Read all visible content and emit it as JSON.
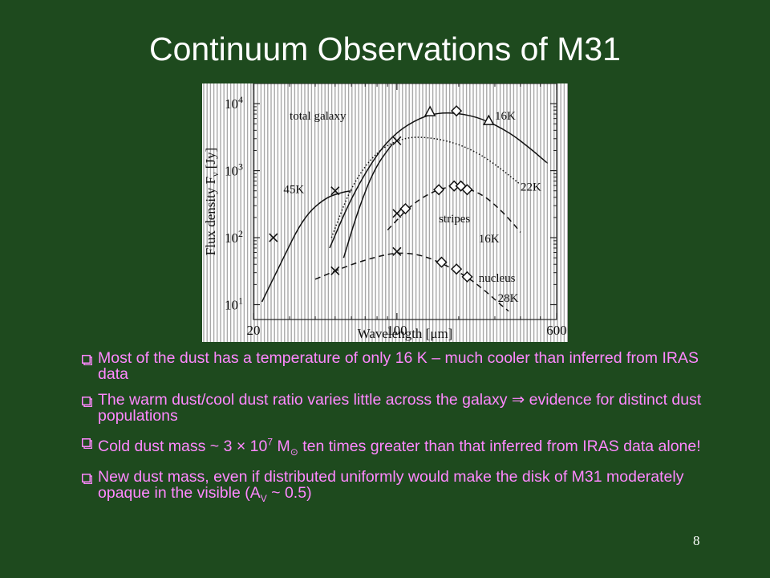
{
  "slide": {
    "title": "Continuum Observations of M31",
    "page_number": "8",
    "colors": {
      "background": "#1e4a1e",
      "text_pink": "#ff88ff",
      "title": "#ffffff"
    }
  },
  "bullets": [
    {
      "text": "Most of the dust has a temperature of only 16 K – much cooler than inferred from IRAS data"
    },
    {
      "pre": "The warm dust/cool dust ratio varies little across the galaxy ",
      "symbol": "⇒",
      "post": " evidence for distinct dust populations"
    },
    {
      "pre": "Cold dust mass ~ 3 ",
      "times": "×",
      "mid": " 10",
      "sup": "7",
      "unit": " M",
      "sun": "⊙",
      "post": " ten times greater than that inferred from IRAS data alone!"
    },
    {
      "pre": "New dust mass, even if distributed uniformly would make the disk of M31 moderately opaque in the visible (A",
      "sub": "V",
      "post": " ~ 0.5)"
    }
  ],
  "chart_data": {
    "type": "line",
    "xlabel": "Wavelength [μm]",
    "ylabel": "Flux density F",
    "ylabel_sub": "ν",
    "ylabel_unit": " [Jy]",
    "x_scale": "log",
    "y_scale": "log",
    "xlim": [
      20,
      600
    ],
    "ylim": [
      6,
      20000
    ],
    "x_ticks": [
      {
        "value": 20,
        "label": "20"
      },
      {
        "value": 100,
        "label": "100"
      },
      {
        "value": 600,
        "label": "600"
      }
    ],
    "y_ticks": [
      {
        "value": 10,
        "base": "10",
        "exp": "1"
      },
      {
        "value": 100,
        "base": "10",
        "exp": "2"
      },
      {
        "value": 1000,
        "base": "10",
        "exp": "3"
      },
      {
        "value": 10000,
        "base": "10",
        "exp": "4"
      }
    ],
    "annotations": [
      {
        "text": "total galaxy",
        "x": 30,
        "y": 5800
      },
      {
        "text": "16K",
        "x": 300,
        "y": 5800
      },
      {
        "text": "22K",
        "x": 400,
        "y": 500
      },
      {
        "text": "45K",
        "x": 28,
        "y": 460
      },
      {
        "text": "stripes",
        "x": 160,
        "y": 170
      },
      {
        "text": "16K",
        "x": 250,
        "y": 85
      },
      {
        "text": "nucleus",
        "x": 250,
        "y": 22
      },
      {
        "text": "28K",
        "x": 310,
        "y": 11
      }
    ],
    "series": [
      {
        "style": "solid",
        "points": [
          [
            22,
            11
          ],
          [
            27,
            40
          ],
          [
            35,
            200
          ],
          [
            45,
            400
          ],
          [
            55,
            480
          ],
          [
            60,
            500
          ]
        ]
      },
      {
        "style": "solid",
        "points": [
          [
            47,
            70
          ],
          [
            60,
            400
          ],
          [
            80,
            1800
          ],
          [
            100,
            3800
          ],
          [
            130,
            6200
          ],
          [
            160,
            7300
          ],
          [
            200,
            7200
          ],
          [
            260,
            6000
          ],
          [
            350,
            3800
          ],
          [
            450,
            2100
          ],
          [
            540,
            1300
          ]
        ]
      },
      {
        "style": "solid",
        "points": [
          [
            55,
            50
          ],
          [
            65,
            270
          ],
          [
            78,
            1100
          ],
          [
            95,
            2500
          ]
        ]
      },
      {
        "style": "dotted",
        "points": [
          [
            48,
            100
          ],
          [
            60,
            600
          ],
          [
            80,
            2000
          ],
          [
            110,
            3200
          ],
          [
            150,
            3100
          ],
          [
            200,
            2500
          ],
          [
            260,
            1700
          ],
          [
            330,
            1000
          ],
          [
            400,
            620
          ]
        ]
      },
      {
        "style": "dashed",
        "points": [
          [
            90,
            130
          ],
          [
            120,
            330
          ],
          [
            160,
            540
          ],
          [
            200,
            590
          ],
          [
            260,
            450
          ],
          [
            320,
            260
          ],
          [
            370,
            160
          ],
          [
            400,
            120
          ]
        ]
      },
      {
        "style": "dashed",
        "points": [
          [
            40,
            24
          ],
          [
            60,
            40
          ],
          [
            80,
            52
          ],
          [
            100,
            60
          ],
          [
            130,
            56
          ],
          [
            170,
            40
          ],
          [
            220,
            26
          ],
          [
            270,
            16
          ],
          [
            320,
            10
          ],
          [
            350,
            8
          ]
        ]
      }
    ],
    "markers": [
      {
        "shape": "x",
        "points": [
          [
            25,
            100
          ],
          [
            50,
            500
          ],
          [
            100,
            2800
          ],
          [
            100,
            230
          ],
          [
            50,
            32
          ],
          [
            100,
            62
          ]
        ]
      },
      {
        "shape": "triangle",
        "points": [
          [
            145,
            7600
          ],
          [
            280,
            5600
          ]
        ]
      },
      {
        "shape": "diamond",
        "points": [
          [
            195,
            7800
          ],
          [
            110,
            270
          ],
          [
            160,
            520
          ],
          [
            190,
            590
          ],
          [
            205,
            590
          ],
          [
            220,
            520
          ],
          [
            165,
            43
          ],
          [
            195,
            34
          ],
          [
            220,
            26
          ]
        ]
      }
    ]
  }
}
